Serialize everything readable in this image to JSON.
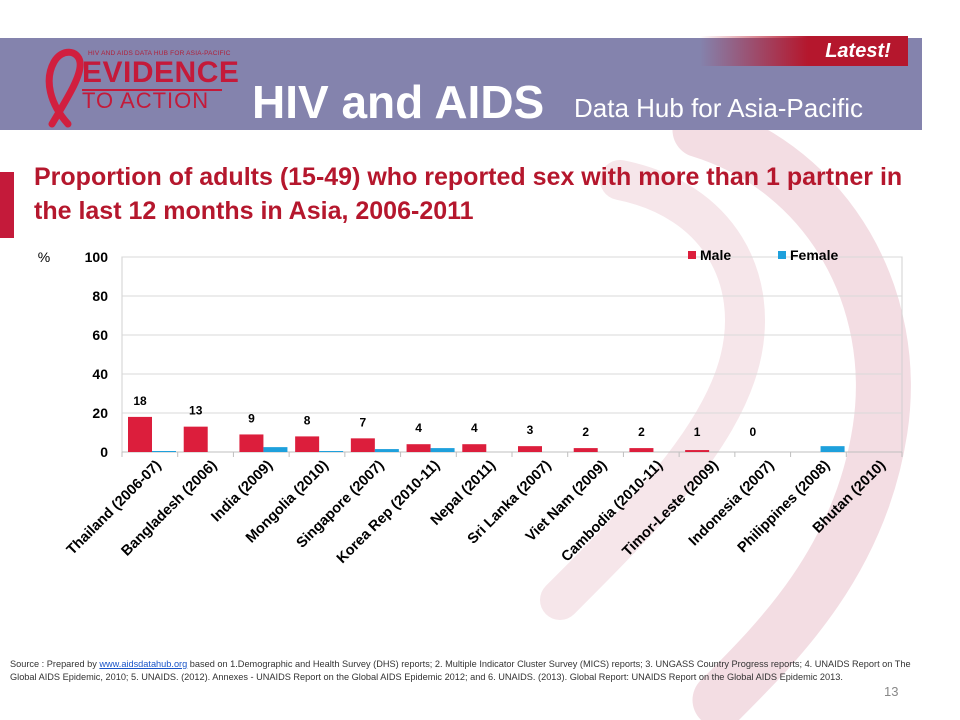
{
  "header": {
    "logo_small_text": "HIV AND AIDS DATA HUB FOR ASIA-PACIFIC",
    "logo_big_text": "EVIDENCE",
    "logo_big_text2": "TO ACTION",
    "title_main": "HIV and AIDS",
    "title_sub": "Data Hub for Asia-Pacific",
    "badge": "Latest!",
    "brand_color": "#c41a3a",
    "header_color": "#8483ad"
  },
  "slide": {
    "title": "Proportion of adults (15-49) who reported sex with more than 1 partner in the last 12 months in Asia, 2006-2011",
    "page_number": "13"
  },
  "chart_data": {
    "type": "bar",
    "ylabel": "%",
    "ylim": [
      0,
      100
    ],
    "yticks": [
      0,
      20,
      40,
      60,
      80,
      100
    ],
    "legend_position": "top-right",
    "grid": true,
    "categories": [
      "Thailand (2006-07)",
      "Bangladesh (2006)",
      "India (2009)",
      "Mongolia (2010)",
      "Singapore (2007)",
      "Korea Rep (2010-11)",
      "Nepal (2011)",
      "Sri Lanka (2007)",
      "Viet Nam (2009)",
      "Cambodia (2010-11)",
      "Timor-Leste (2009)",
      "Indonesia (2007)",
      "Philippines (2008)",
      "Bhutan (2010)"
    ],
    "series": [
      {
        "name": "Male",
        "color": "#dc1e3c",
        "values": [
          18,
          13,
          9,
          8,
          7,
          4,
          4,
          3,
          2,
          2,
          1,
          0,
          null,
          null
        ],
        "labels": [
          "18",
          "13",
          "9",
          "8",
          "7",
          "4",
          "4",
          "3",
          "2",
          "2",
          "1",
          "0",
          "",
          ""
        ]
      },
      {
        "name": "Female",
        "color": "#1ea0dc",
        "values": [
          0.5,
          null,
          2.5,
          0.5,
          1.5,
          2,
          null,
          null,
          null,
          null,
          null,
          null,
          3,
          null
        ]
      }
    ]
  },
  "source": {
    "prefix": "Source : Prepared by ",
    "link": "www.aidsdatahub.org",
    "text": " based on 1.Demographic and Health Survey (DHS) reports; 2. Multiple Indicator Cluster Survey (MICS) reports; 3. UNGASS Country Progress reports; 4. UNAIDS Report on The Global AIDS Epidemic, 2010; 5. UNAIDS. (2012). Annexes - UNAIDS Report on the Global AIDS Epidemic 2012; and 6. UNAIDS. (2013). Global Report: UNAIDS Report on the Global AIDS Epidemic 2013."
  }
}
